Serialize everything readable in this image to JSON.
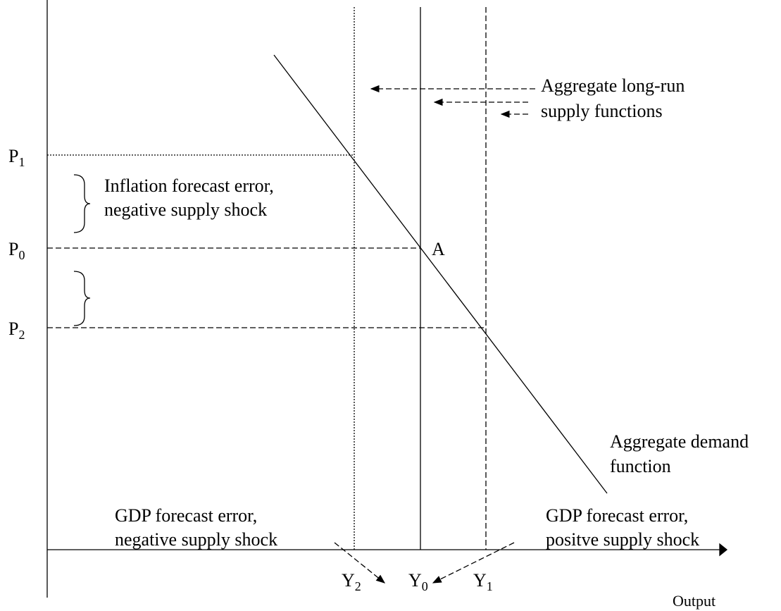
{
  "labels": {
    "p1": {
      "base": "P",
      "sub": "1"
    },
    "p0": {
      "base": "P",
      "sub": "0"
    },
    "p2": {
      "base": "P",
      "sub": "2"
    },
    "y2": {
      "base": "Y",
      "sub": "2"
    },
    "y0": {
      "base": "Y",
      "sub": "0"
    },
    "y1": {
      "base": "Y",
      "sub": "1"
    },
    "point_a": "A",
    "x_axis": "Output"
  },
  "annotations": {
    "inflation": [
      "Inflation forecast error,",
      "negative supply shock"
    ],
    "long_run": [
      "Aggregate long-run",
      "supply functions"
    ],
    "demand": [
      "Aggregate demand",
      "function"
    ],
    "gdp_negative": [
      "GDP forecast error,",
      "negative supply shock"
    ],
    "gdp_positive": [
      "GDP forecast error,",
      "positve supply shock"
    ]
  }
}
